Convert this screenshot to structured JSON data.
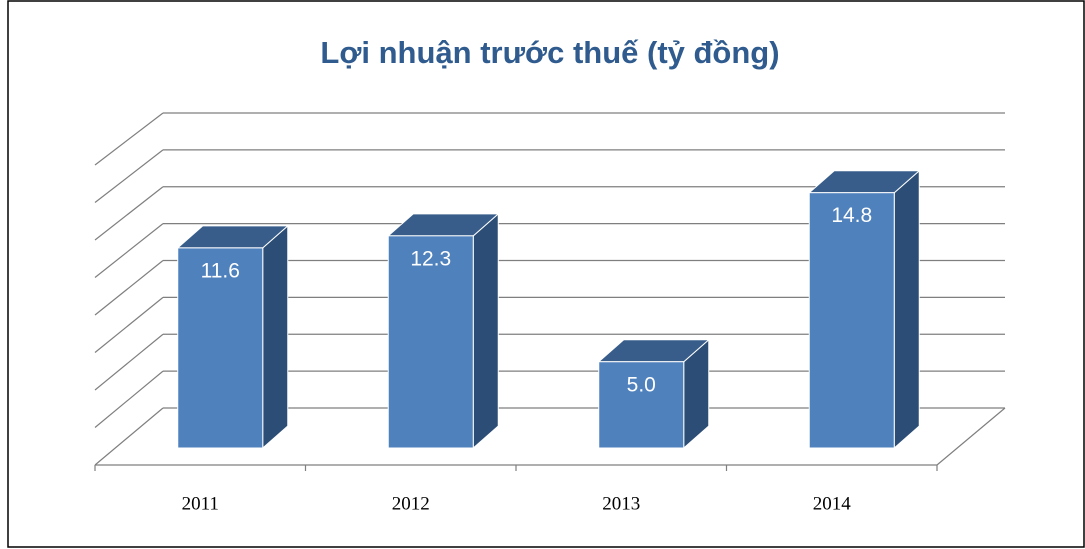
{
  "chart_data": {
    "type": "bar3d",
    "title": "Lợi nhuận trước thuế (tỷ đồng)",
    "categories": [
      "2011",
      "2012",
      "2013",
      "2014"
    ],
    "values": [
      11.6,
      12.3,
      5,
      14.8
    ],
    "value_labels": [
      "11.6",
      "12.3",
      "5.0",
      "14.8"
    ],
    "color": "#4f81bd",
    "ylim": [
      0,
      16
    ],
    "yticks": [
      0,
      2,
      4,
      6,
      8,
      10,
      12,
      14,
      16
    ],
    "grid": true
  }
}
